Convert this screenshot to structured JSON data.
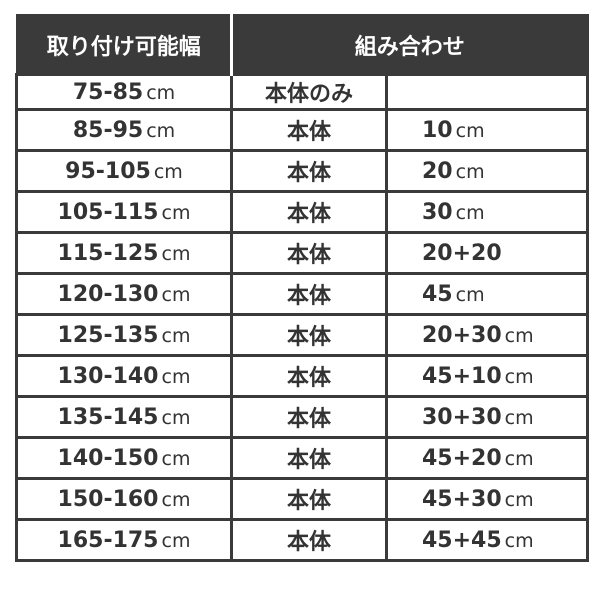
{
  "header": {
    "col1": "取り付け可能幅",
    "col2": "組み合わせ"
  },
  "unit": "cm",
  "rows": [
    {
      "range": "75-85",
      "body": "本体のみ",
      "extra": ""
    },
    {
      "range": "85-95",
      "body": "本体",
      "extra": "10"
    },
    {
      "range": "95-105",
      "body": "本体",
      "extra": "20"
    },
    {
      "range": "105-115",
      "body": "本体",
      "extra": "30"
    },
    {
      "range": "115-125",
      "body": "本体",
      "extra": "20+20"
    },
    {
      "range": "120-130",
      "body": "本体",
      "extra": "45"
    },
    {
      "range": "125-135",
      "body": "本体",
      "extra": "20+30"
    },
    {
      "range": "130-140",
      "body": "本体",
      "extra": "45+10"
    },
    {
      "range": "135-145",
      "body": "本体",
      "extra": "30+30"
    },
    {
      "range": "140-150",
      "body": "本体",
      "extra": "45+20"
    },
    {
      "range": "150-160",
      "body": "本体",
      "extra": "45+30"
    },
    {
      "range": "165-175",
      "body": "本体",
      "extra": "45+45"
    }
  ],
  "units_shown": [
    true,
    true,
    true,
    true,
    false,
    true,
    true,
    true,
    true,
    true,
    true,
    true
  ]
}
